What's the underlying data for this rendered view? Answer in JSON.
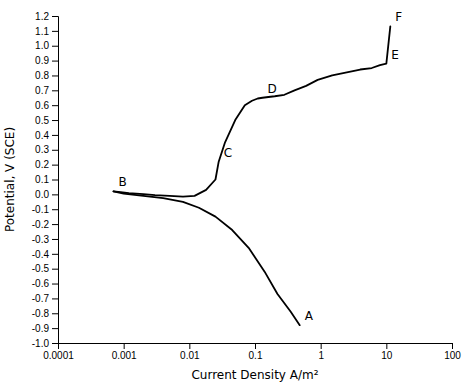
{
  "chart_data": {
    "type": "line",
    "xlabel": "Current Density A/m²",
    "ylabel": "Potential, V (SCE)",
    "log": "x",
    "grid": false,
    "xlim": [
      0.0001,
      100
    ],
    "ylim": [
      -1.0,
      1.2
    ],
    "xticks": [
      0.0001,
      0.001,
      0.01,
      0.1,
      1,
      10,
      100
    ],
    "yticks": [
      {
        "value": -1.0,
        "label": "-1.0"
      },
      -0.9,
      -0.8,
      -0.7,
      -0.6,
      -0.5,
      -0.4,
      -0.3,
      -0.2,
      -0.1,
      {
        "value": 0.0,
        "label": "0.0"
      },
      0.1,
      0.2,
      0.3,
      0.4,
      0.5,
      0.6,
      0.7,
      0.8,
      0.9,
      {
        "value": 1.0,
        "label": "1.0"
      },
      1.1,
      1.2
    ],
    "series": [
      {
        "color": "#000000",
        "x": [
          0.0007,
          0.0009,
          0.0012,
          0.002,
          0.003,
          0.005,
          0.008,
          0.012,
          0.018,
          0.025,
          0.028,
          0.035,
          0.05,
          0.07,
          0.09,
          0.11,
          0.13,
          0.16,
          0.2,
          0.28,
          0.4,
          0.6,
          0.9,
          1.5,
          2.5,
          4.0,
          6.0,
          8.0,
          10.0,
          11.5
        ],
        "values": [
          0.02,
          0.015,
          0.008,
          0.002,
          -0.005,
          -0.01,
          -0.015,
          -0.01,
          0.03,
          0.1,
          0.22,
          0.35,
          0.5,
          0.6,
          0.63,
          0.645,
          0.65,
          0.655,
          0.66,
          0.67,
          0.7,
          0.73,
          0.77,
          0.8,
          0.82,
          0.84,
          0.85,
          0.87,
          0.88,
          1.13
        ]
      },
      {
        "color": "#000000",
        "x": [
          0.0007,
          0.001,
          0.002,
          0.004,
          0.008,
          0.014,
          0.025,
          0.045,
          0.08,
          0.14,
          0.22,
          0.35,
          0.48
        ],
        "values": [
          0.02,
          0.005,
          -0.01,
          -0.025,
          -0.05,
          -0.09,
          -0.15,
          -0.24,
          -0.36,
          -0.52,
          -0.67,
          -0.79,
          -0.88
        ]
      }
    ],
    "annotations": [
      {
        "text": "B",
        "x": 0.0007,
        "y": 0.02
      },
      {
        "text": "C",
        "x": 0.028,
        "y": 0.22
      },
      {
        "text": "D",
        "x": 0.13,
        "y": 0.65
      },
      {
        "text": "E",
        "x": 10.0,
        "y": 0.88
      },
      {
        "text": "F",
        "x": 11.5,
        "y": 1.13
      },
      {
        "text": "A",
        "x": 0.48,
        "y": -0.88
      }
    ]
  }
}
